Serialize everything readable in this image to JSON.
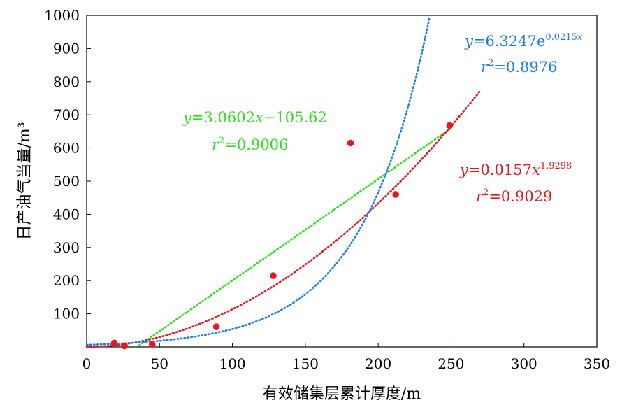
{
  "chart_data": {
    "type": "scatter",
    "xlabel": "有效储集层累计厚度/m",
    "ylabel": "日产油气当量/m³",
    "xlim": [
      0,
      350
    ],
    "ylim": [
      0,
      1000
    ],
    "xticks": [
      "0",
      "50",
      "100",
      "150",
      "200",
      "250",
      "300",
      "350"
    ],
    "yticks": [
      "100",
      "200",
      "300",
      "400",
      "500",
      "600",
      "700",
      "800",
      "900",
      "1000"
    ],
    "grid": false,
    "points": [
      {
        "x": 19,
        "y": 12
      },
      {
        "x": 26,
        "y": 3
      },
      {
        "x": 45,
        "y": 8
      },
      {
        "x": 89,
        "y": 61
      },
      {
        "x": 128,
        "y": 215
      },
      {
        "x": 181,
        "y": 615
      },
      {
        "x": 212,
        "y": 460
      },
      {
        "x": 249,
        "y": 668
      }
    ],
    "point_color": "#e8141e",
    "trendlines": [
      {
        "kind": "linear",
        "a": 3.0602,
        "b": -105.62,
        "x_range": [
          36,
          249
        ],
        "color": "#33dd22",
        "eq": {
          "y": "y",
          "eqsign": "=",
          "body": "3.0602",
          "x": "x",
          "rest": "−105.62"
        },
        "r2": {
          "r": "r",
          "sup": "2",
          "val": "=0.9006"
        }
      },
      {
        "kind": "power",
        "a": 0.0157,
        "b": 1.9298,
        "x_range": [
          0,
          270
        ],
        "color": "#e8141e",
        "eq": {
          "y": "y",
          "eqsign": "=",
          "body": "0.0157",
          "x": "x",
          "sup": "1.9298"
        },
        "r2": {
          "r": "r",
          "sup": "2",
          "val": "=0.9029"
        }
      },
      {
        "kind": "exponential",
        "a": 6.3247,
        "b": 0.0215,
        "x_range": [
          0,
          235
        ],
        "color": "#1e7fe0",
        "eq": {
          "y": "y",
          "eqsign": "=",
          "body": "6.3247e",
          "sup_num": "0.0215",
          "sup_x": "x"
        },
        "r2": {
          "r": "r",
          "sup": "2",
          "val": "=0.8976"
        }
      }
    ]
  }
}
